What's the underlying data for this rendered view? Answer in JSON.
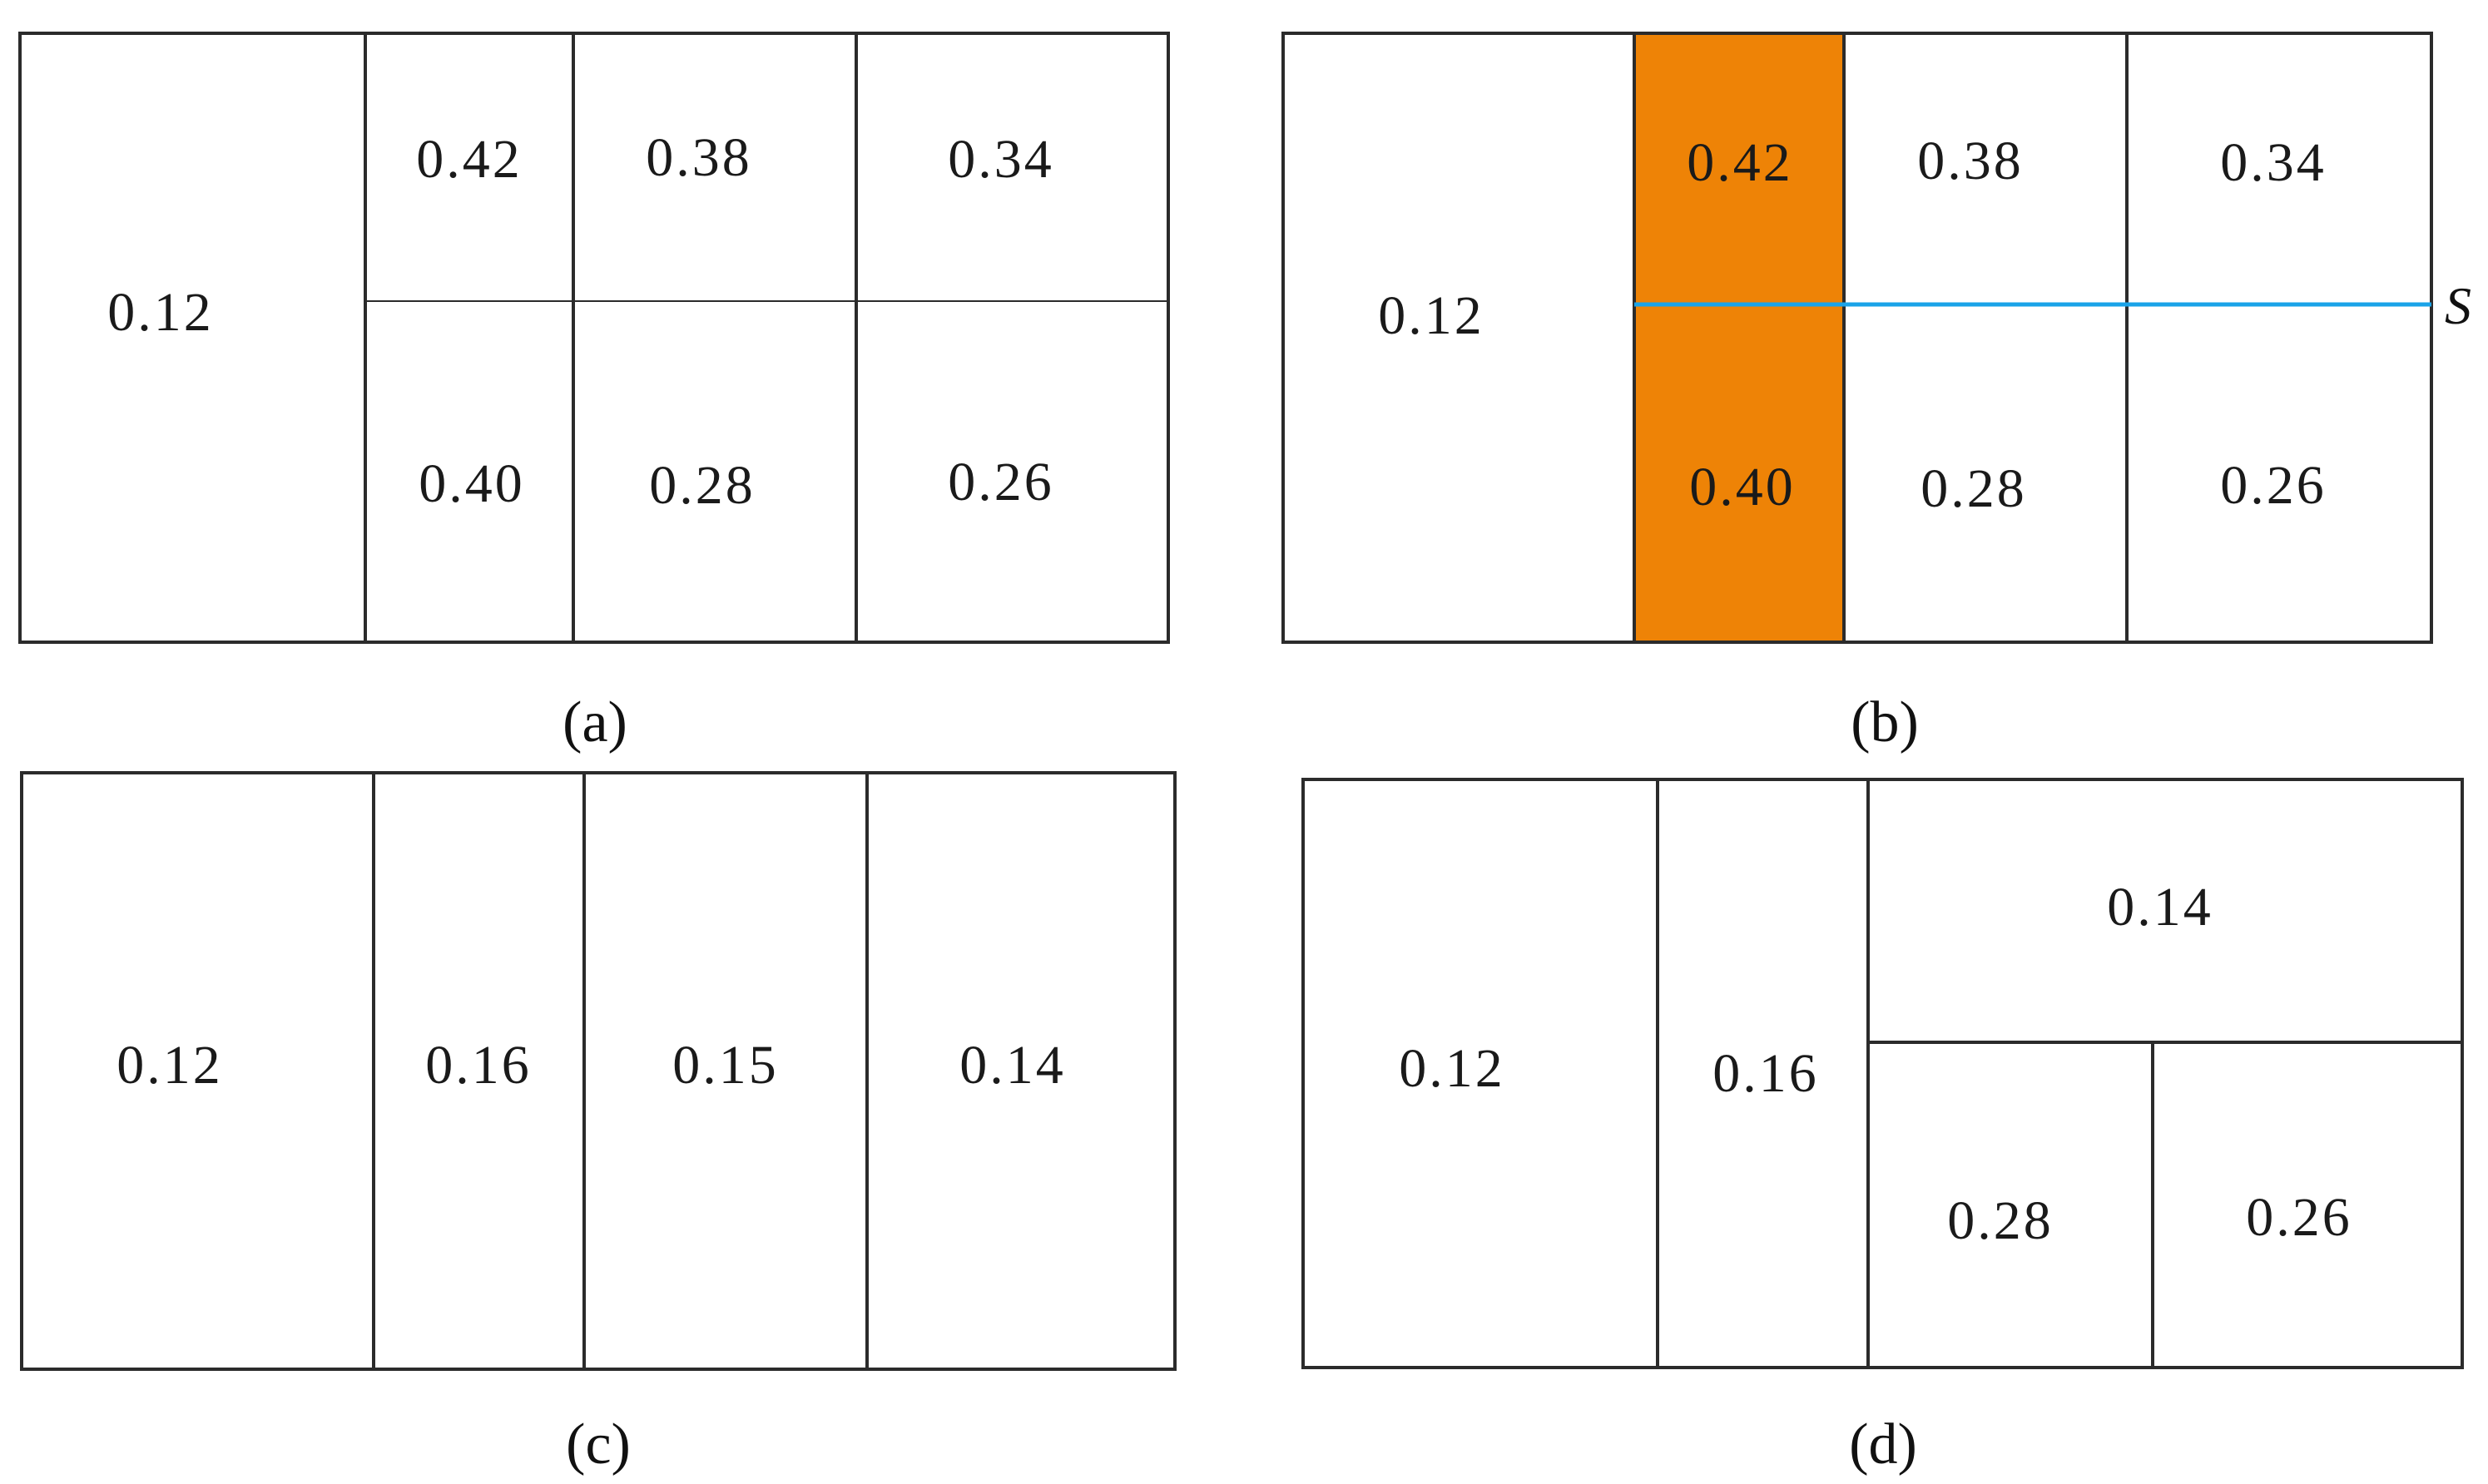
{
  "colors": {
    "line": "#2b2b2b",
    "highlight_fill": "#ee8306",
    "split_line": "#1aa3e8",
    "text": "#1a1a1a"
  },
  "panels": [
    {
      "id": "a",
      "caption": "a",
      "cells": [
        {
          "id": "a-c1",
          "value": "0.12"
        },
        {
          "id": "a-c2",
          "value": "0.42"
        },
        {
          "id": "a-c3",
          "value": "0.38"
        },
        {
          "id": "a-c4",
          "value": "0.34"
        },
        {
          "id": "a-c5",
          "value": "0.40"
        },
        {
          "id": "a-c6",
          "value": "0.28"
        },
        {
          "id": "a-c7",
          "value": "0.26"
        }
      ]
    },
    {
      "id": "b",
      "caption": "b",
      "split_line_label": "S",
      "highlighted_cells": [
        "b-c2",
        "b-c5"
      ],
      "cells": [
        {
          "id": "b-c1",
          "value": "0.12"
        },
        {
          "id": "b-c2",
          "value": "0.42"
        },
        {
          "id": "b-c3",
          "value": "0.38"
        },
        {
          "id": "b-c4",
          "value": "0.34"
        },
        {
          "id": "b-c5",
          "value": "0.40"
        },
        {
          "id": "b-c6",
          "value": "0.28"
        },
        {
          "id": "b-c7",
          "value": "0.26"
        }
      ]
    },
    {
      "id": "c",
      "caption": "c",
      "cells": [
        {
          "id": "c-c1",
          "value": "0.12"
        },
        {
          "id": "c-c2",
          "value": "0.16"
        },
        {
          "id": "c-c3",
          "value": "0.15"
        },
        {
          "id": "c-c4",
          "value": "0.14"
        }
      ]
    },
    {
      "id": "d",
      "caption": "d",
      "cells": [
        {
          "id": "d-c1",
          "value": "0.12"
        },
        {
          "id": "d-c2",
          "value": "0.16"
        },
        {
          "id": "d-c3",
          "value": "0.14"
        },
        {
          "id": "d-c4",
          "value": "0.28"
        },
        {
          "id": "d-c5",
          "value": "0.26"
        }
      ]
    }
  ]
}
